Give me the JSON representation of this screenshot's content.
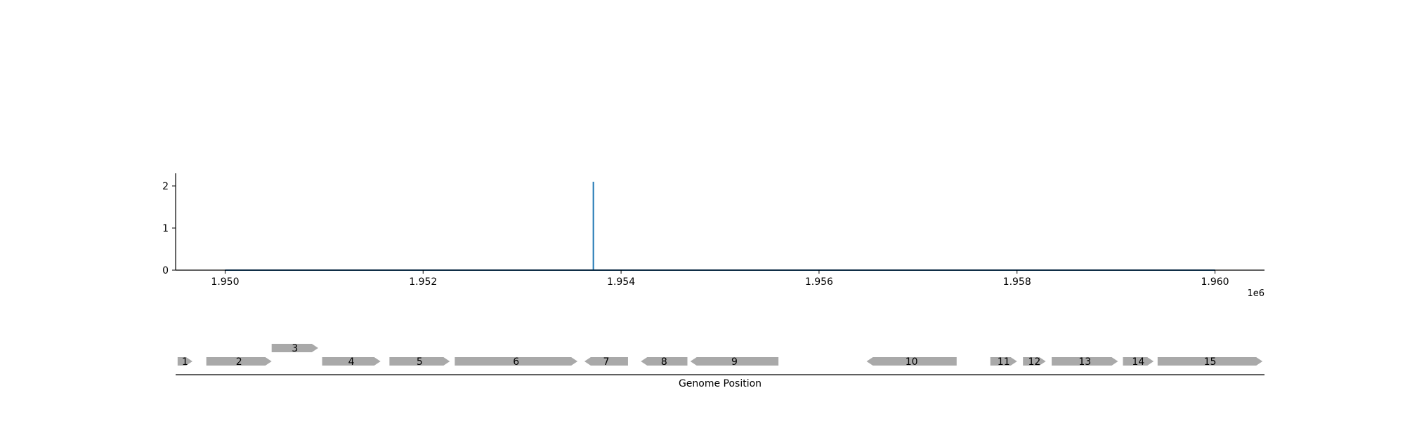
{
  "chart_data": [
    {
      "type": "line",
      "title": "",
      "xlabel": "",
      "ylabel": "",
      "x_offset_label": "1e6",
      "xlim": [
        1.9495,
        1.9605
      ],
      "ylim": [
        0,
        2.3
      ],
      "x_ticks": [
        1.95,
        1.952,
        1.954,
        1.956,
        1.958,
        1.96
      ],
      "x_tick_labels": [
        "1.950",
        "1.952",
        "1.954",
        "1.956",
        "1.958",
        "1.960"
      ],
      "y_ticks": [
        0,
        1,
        2
      ],
      "y_tick_labels": [
        "0",
        "1",
        "2"
      ],
      "grid": false,
      "line_color": "#1f77b4",
      "series": [
        {
          "x": [
            1.95,
            1.95372,
            1.95372,
            1.95372,
            1.96
          ],
          "y": [
            0,
            0,
            2.1,
            0,
            0
          ]
        }
      ]
    },
    {
      "type": "gene-track",
      "xlabel": "Genome Position",
      "xlim": [
        1.9495,
        1.9605
      ],
      "feature_color": "#a9a9a9",
      "genes": [
        {
          "label": "1",
          "start": 1.94952,
          "end": 1.94967,
          "strand": 1,
          "level": 0
        },
        {
          "label": "2",
          "start": 1.94981,
          "end": 1.95047,
          "strand": 1,
          "level": 0
        },
        {
          "label": "3",
          "start": 1.95047,
          "end": 1.95094,
          "strand": 1,
          "level": 1
        },
        {
          "label": "4",
          "start": 1.95098,
          "end": 1.95157,
          "strand": 1,
          "level": 0
        },
        {
          "label": "5",
          "start": 1.95166,
          "end": 1.95227,
          "strand": 1,
          "level": 0
        },
        {
          "label": "6",
          "start": 1.95232,
          "end": 1.95356,
          "strand": 1,
          "level": 0
        },
        {
          "label": "7",
          "start": 1.95363,
          "end": 1.95407,
          "strand": -1,
          "level": 0
        },
        {
          "label": "8",
          "start": 1.9542,
          "end": 1.95467,
          "strand": -1,
          "level": 0
        },
        {
          "label": "9",
          "start": 1.9547,
          "end": 1.95559,
          "strand": -1,
          "level": 0
        },
        {
          "label": "10",
          "start": 1.95648,
          "end": 1.95739,
          "strand": -1,
          "level": 0
        },
        {
          "label": "11",
          "start": 1.95773,
          "end": 1.958,
          "strand": 1,
          "level": 0
        },
        {
          "label": "12",
          "start": 1.95806,
          "end": 1.95829,
          "strand": 1,
          "level": 0
        },
        {
          "label": "13",
          "start": 1.95835,
          "end": 1.95902,
          "strand": 1,
          "level": 0
        },
        {
          "label": "14",
          "start": 1.95907,
          "end": 1.95938,
          "strand": 1,
          "level": 0
        },
        {
          "label": "15",
          "start": 1.95942,
          "end": 1.96048,
          "strand": 1,
          "level": 0
        }
      ]
    }
  ]
}
